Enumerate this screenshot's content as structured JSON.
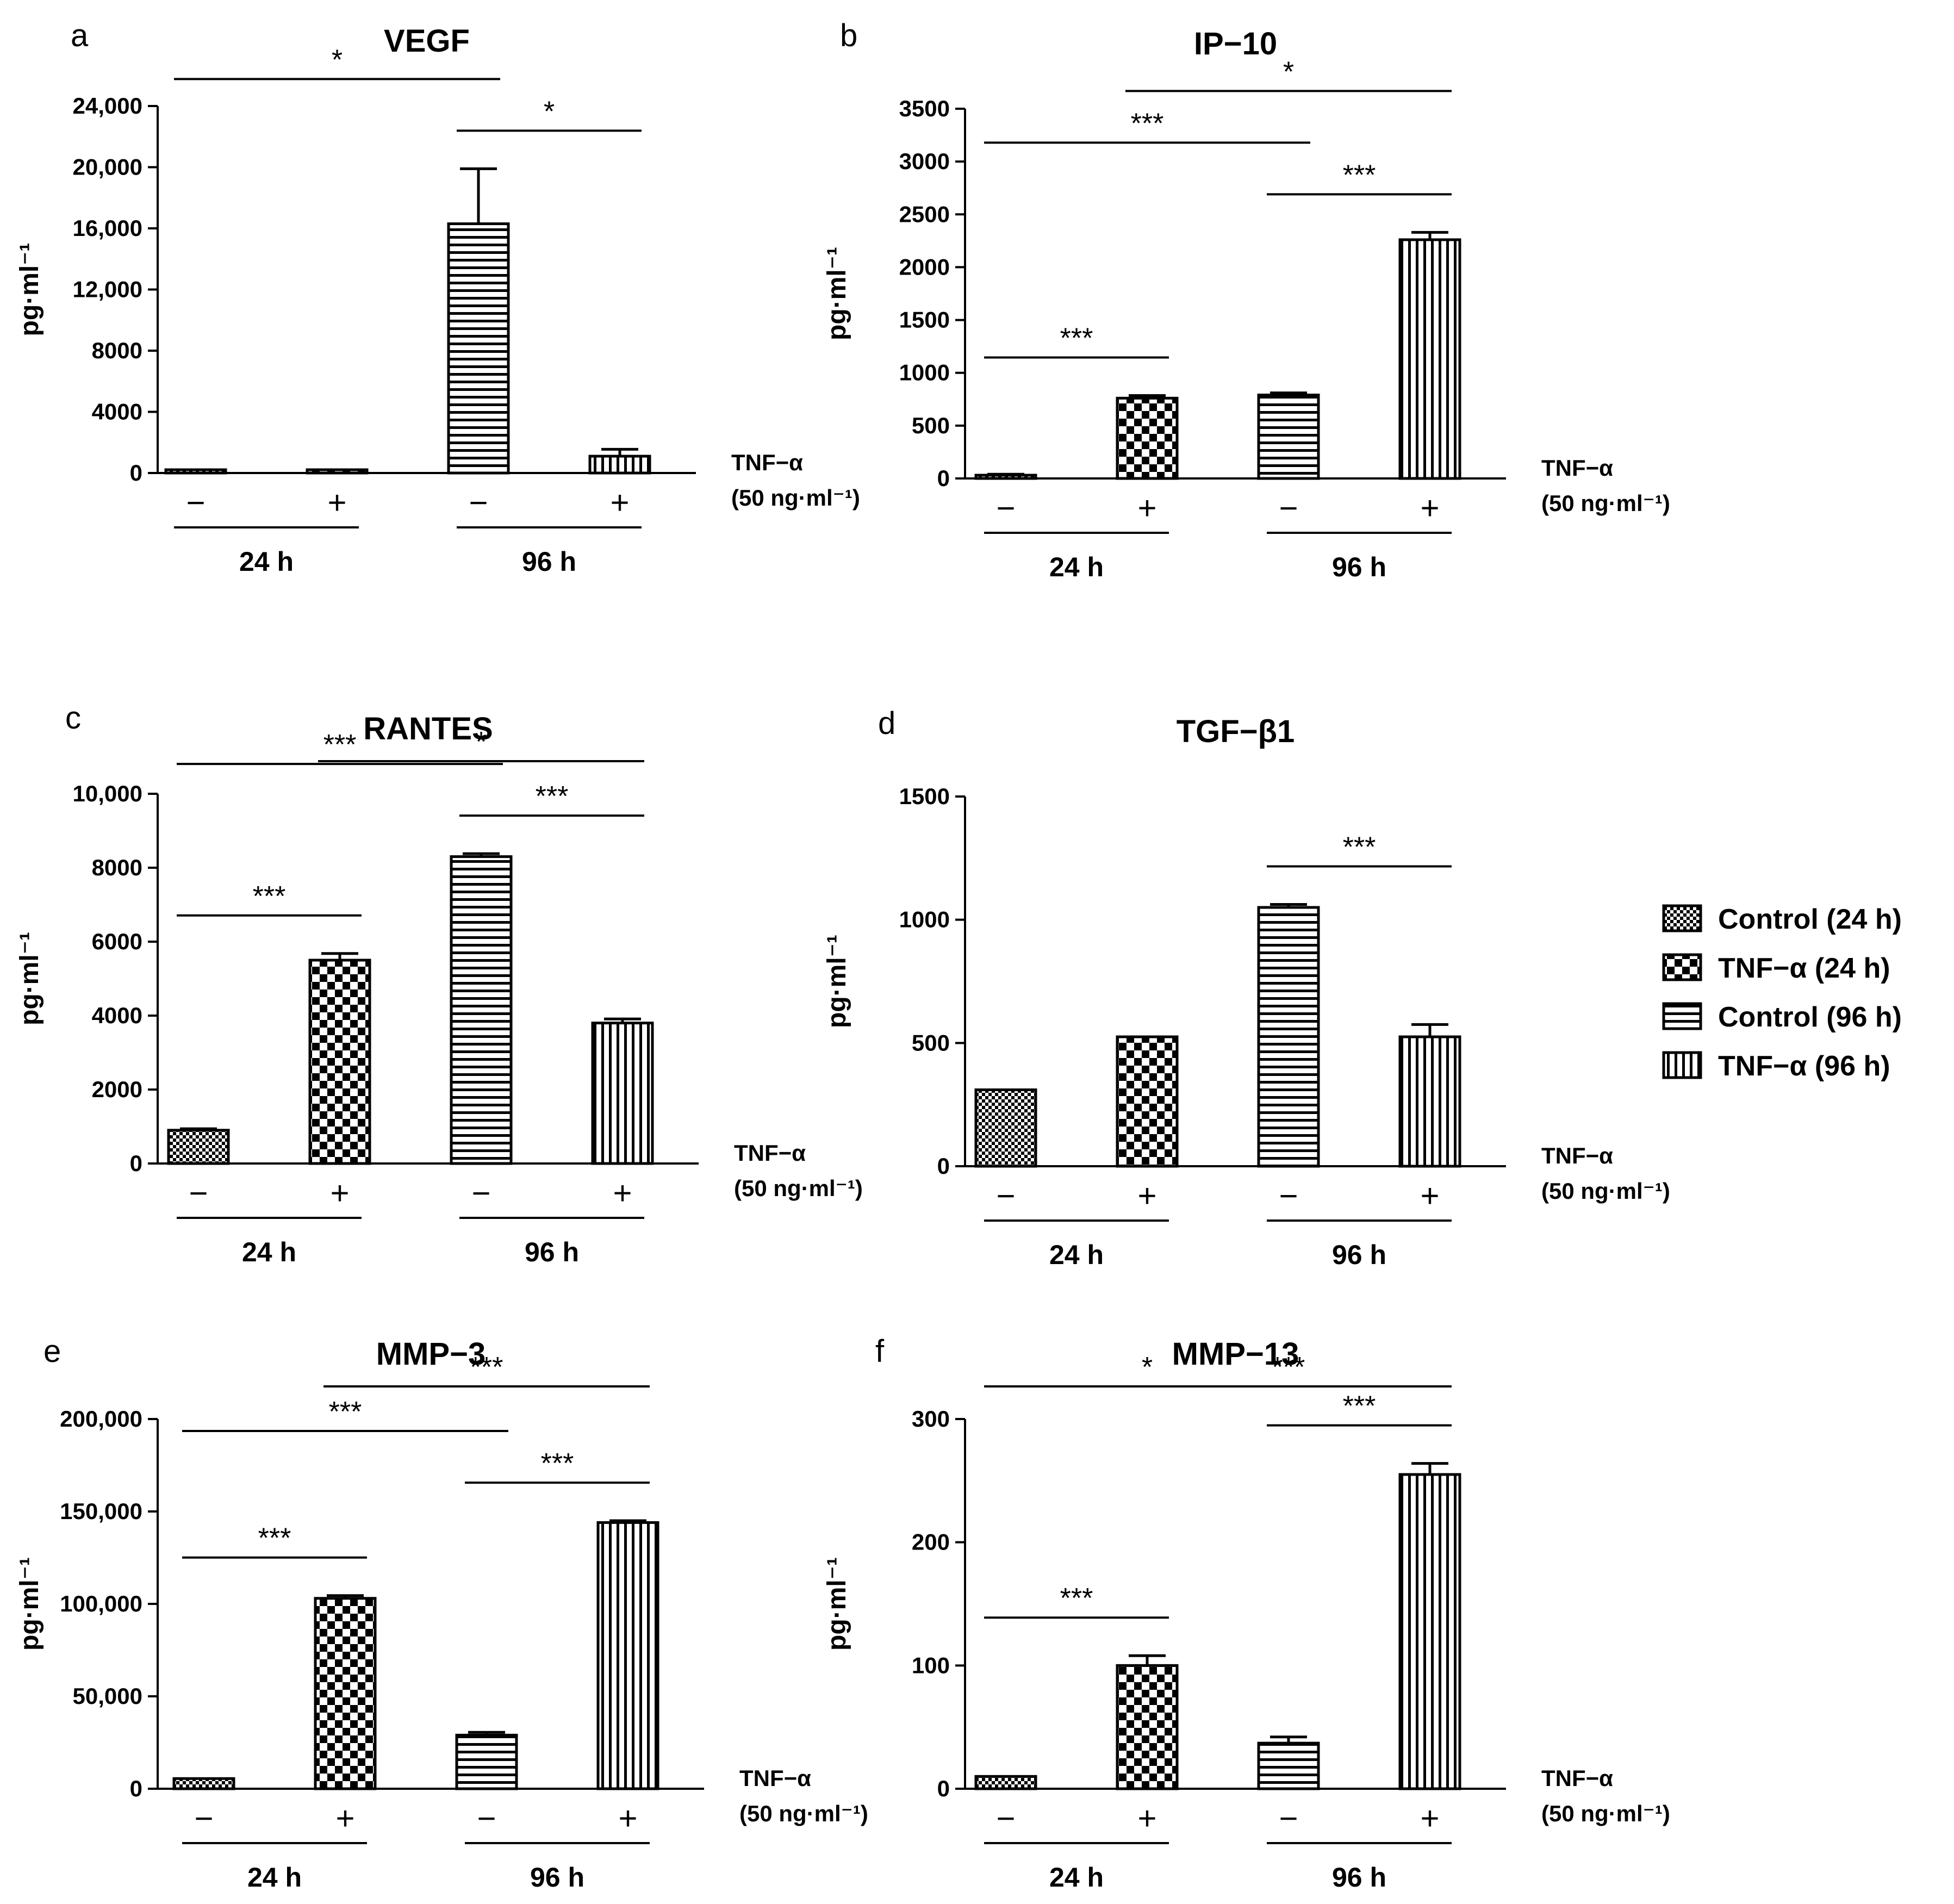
{
  "chart_data": [
    {
      "panel": "a",
      "title": "VEGF",
      "type": "bar",
      "ylabel": "pg·ml⁻¹",
      "ylim": [
        0,
        24000
      ],
      "yticks": [
        "0",
        "4000",
        "8000",
        "12,000",
        "16,000",
        "20,000",
        "24,000"
      ],
      "categories": [
        "Control (24 h)",
        "TNF−α (24 h)",
        "Control (96 h)",
        "TNF−α (96 h)"
      ],
      "values": [
        100,
        100,
        16300,
        1100
      ],
      "errors": [
        0,
        0,
        3600,
        450
      ],
      "signs": [
        "−",
        "+",
        "−",
        "+"
      ],
      "groups": [
        "24 h",
        "96 h"
      ],
      "treatment": [
        "TNF−α",
        "(50 ng·ml⁻¹)"
      ],
      "significance": [
        {
          "from": 0,
          "to": 2,
          "label": "*"
        },
        {
          "from": 2,
          "to": 3,
          "label": "*"
        }
      ]
    },
    {
      "panel": "b",
      "title": "IP−10",
      "type": "bar",
      "ylabel": "pg·ml⁻¹",
      "ylim": [
        0,
        3500
      ],
      "yticks": [
        "0",
        "500",
        "1000",
        "1500",
        "2000",
        "2500",
        "3000",
        "3500"
      ],
      "categories": [
        "Control (24 h)",
        "TNF−α (24 h)",
        "Control (96 h)",
        "TNF−α (96 h)"
      ],
      "values": [
        30,
        760,
        790,
        2260
      ],
      "errors": [
        10,
        25,
        20,
        70
      ],
      "signs": [
        "−",
        "+",
        "−",
        "+"
      ],
      "groups": [
        "24 h",
        "96 h"
      ],
      "treatment": [
        "TNF−α",
        "(50 ng·ml⁻¹)"
      ],
      "significance": [
        {
          "from": 0,
          "to": 1,
          "label": "***"
        },
        {
          "from": 0,
          "to": 2,
          "label": "***"
        },
        {
          "from": 1,
          "to": 3,
          "label": "*"
        },
        {
          "from": 2,
          "to": 3,
          "label": "***"
        }
      ]
    },
    {
      "panel": "c",
      "title": "RANTES",
      "type": "bar",
      "ylabel": "pg·ml⁻¹",
      "ylim": [
        0,
        10000
      ],
      "yticks": [
        "0",
        "2000",
        "4000",
        "6000",
        "8000",
        "10,000"
      ],
      "categories": [
        "Control (24 h)",
        "TNF−α (24 h)",
        "Control (96 h)",
        "TNF−α (96 h)"
      ],
      "values": [
        900,
        5500,
        8300,
        3800
      ],
      "errors": [
        40,
        180,
        80,
        110
      ],
      "signs": [
        "−",
        "+",
        "−",
        "+"
      ],
      "groups": [
        "24 h",
        "96 h"
      ],
      "treatment": [
        "TNF−α",
        "(50 ng·ml⁻¹)"
      ],
      "significance": [
        {
          "from": 0,
          "to": 1,
          "label": "***"
        },
        {
          "from": 0,
          "to": 2,
          "label": "***"
        },
        {
          "from": 1,
          "to": 3,
          "label": "*"
        },
        {
          "from": 2,
          "to": 3,
          "label": "***"
        }
      ]
    },
    {
      "panel": "d",
      "title": "TGF−β1",
      "type": "bar",
      "ylabel": "pg·ml⁻¹",
      "ylim": [
        0,
        1500
      ],
      "yticks": [
        "0",
        "500",
        "1000",
        "1500"
      ],
      "categories": [
        "Control (24 h)",
        "TNF−α (24 h)",
        "Control (96 h)",
        "TNF−α (96 h)"
      ],
      "values": [
        310,
        525,
        1050,
        525
      ],
      "errors": [
        0,
        0,
        12,
        50
      ],
      "signs": [
        "−",
        "+",
        "−",
        "+"
      ],
      "groups": [
        "24 h",
        "96 h"
      ],
      "treatment": [
        "TNF−α",
        "(50 ng·ml⁻¹)"
      ],
      "significance": [
        {
          "from": 2,
          "to": 3,
          "label": "***"
        }
      ]
    },
    {
      "panel": "e",
      "title": "MMP−3",
      "type": "bar",
      "ylabel": "pg·ml⁻¹",
      "ylim": [
        0,
        200000
      ],
      "yticks": [
        "0",
        "50,000",
        "100,000",
        "150,000",
        "200,000"
      ],
      "categories": [
        "Control (24 h)",
        "TNF−α (24 h)",
        "Control (96 h)",
        "TNF−α (96 h)"
      ],
      "values": [
        5500,
        103000,
        29000,
        144000
      ],
      "errors": [
        0,
        1500,
        1500,
        1000
      ],
      "signs": [
        "−",
        "+",
        "−",
        "+"
      ],
      "groups": [
        "24 h",
        "96 h"
      ],
      "treatment": [
        "TNF−α",
        "(50 ng·ml⁻¹)"
      ],
      "significance": [
        {
          "from": 0,
          "to": 1,
          "label": "***"
        },
        {
          "from": 0,
          "to": 2,
          "label": "***"
        },
        {
          "from": 1,
          "to": 3,
          "label": "***"
        },
        {
          "from": 2,
          "to": 3,
          "label": "***"
        }
      ]
    },
    {
      "panel": "f",
      "title": "MMP−13",
      "type": "bar",
      "ylabel": "pg·ml⁻¹",
      "ylim": [
        0,
        300
      ],
      "yticks": [
        "0",
        "100",
        "200",
        "300"
      ],
      "categories": [
        "Control (24 h)",
        "TNF−α (24 h)",
        "Control (96 h)",
        "TNF−α (96 h)"
      ],
      "values": [
        10,
        100,
        37,
        255
      ],
      "errors": [
        0,
        8,
        5,
        9
      ],
      "signs": [
        "−",
        "+",
        "−",
        "+"
      ],
      "groups": [
        "24 h",
        "96 h"
      ],
      "treatment": [
        "TNF−α",
        "(50 ng·ml⁻¹)"
      ],
      "significance": [
        {
          "from": 0,
          "to": 1,
          "label": "***"
        },
        {
          "from": 0,
          "to": 2,
          "label": "*"
        },
        {
          "from": 1,
          "to": 3,
          "label": "***"
        },
        {
          "from": 2,
          "to": 3,
          "label": "***"
        }
      ]
    }
  ],
  "legend": {
    "entries": [
      {
        "label": "Control (24 h)",
        "pattern": "fine-checker"
      },
      {
        "label": "TNF−α (24 h)",
        "pattern": "coarse-checker"
      },
      {
        "label": "Control (96 h)",
        "pattern": "horizontal-stripes"
      },
      {
        "label": "TNF−α (96 h)",
        "pattern": "vertical-stripes"
      }
    ]
  }
}
